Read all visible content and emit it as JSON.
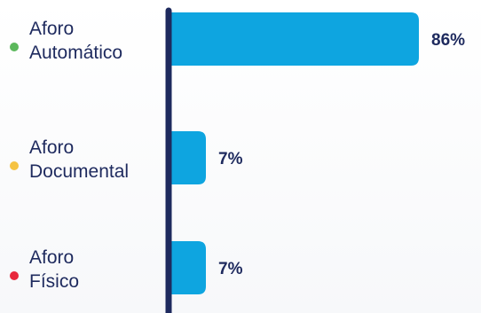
{
  "chart_data": {
    "type": "bar",
    "orientation": "horizontal",
    "categories": [
      [
        "Aforo",
        "Automático"
      ],
      [
        "Aforo",
        "Documental"
      ],
      [
        "Aforo",
        "Físico"
      ]
    ],
    "values": [
      86,
      7,
      7
    ],
    "value_labels": [
      "86%",
      "7%",
      "7%"
    ],
    "unit": "%",
    "xlim": [
      0,
      86
    ],
    "marker_colors": [
      "#5cb85c",
      "#f5c343",
      "#e8283c"
    ],
    "bar_color": "#0ea5e0",
    "axis_color": "#1e2a5e",
    "grid": false,
    "title": "",
    "xlabel": "",
    "ylabel": ""
  }
}
